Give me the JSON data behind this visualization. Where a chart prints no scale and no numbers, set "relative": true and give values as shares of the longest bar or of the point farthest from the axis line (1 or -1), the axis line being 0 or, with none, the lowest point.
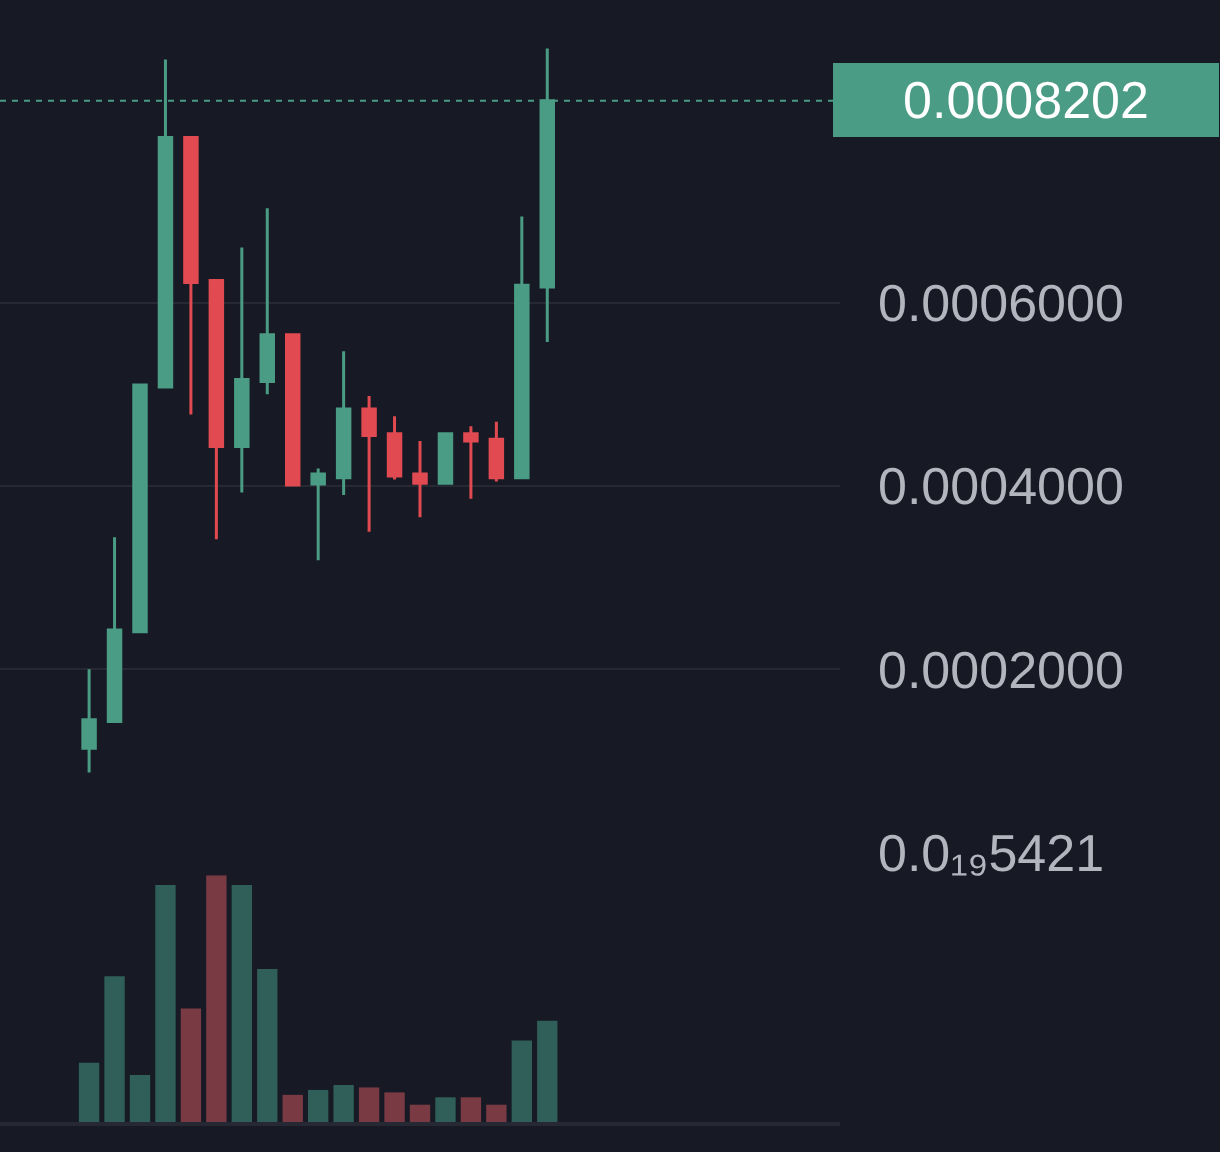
{
  "chart_data": [
    {
      "type": "candlestick",
      "categories": [
        null,
        null,
        null,
        null,
        null,
        null,
        null,
        null,
        null,
        null,
        null,
        null,
        null,
        null,
        null,
        null,
        null,
        null,
        null,
        null,
        null,
        null,
        null,
        null,
        null,
        null,
        null,
        null,
        null,
        null,
        null,
        null,
        null
      ],
      "ohlc": [
        null,
        null,
        null,
        [
          0.000114,
          0.0002,
          8.75e-05,
          0.000145
        ],
        [
          0.000143,
          0.000344,
          0.000143,
          0.000243
        ],
        [
          0.000241,
          0.00051,
          0.000241,
          0.00051
        ],
        [
          0.000508,
          0.000865,
          0.000508,
          0.00078
        ],
        [
          0.00078,
          0.00078,
          0.000478,
          0.000622
        ],
        [
          0.000624,
          0.000624,
          0.000342,
          0.000443
        ],
        [
          0.000443,
          0.00066,
          0.000393,
          0.000516
        ],
        [
          0.000514,
          0.000703,
          0.0005,
          0.000565
        ],
        [
          0.000565,
          0.000565,
          0.000401,
          0.000401
        ],
        [
          0.000402,
          0.000419,
          0.000319,
          0.000413
        ],
        [
          0.000409,
          0.000547,
          0.00039,
          0.000484
        ],
        [
          0.000484,
          0.000498,
          0.00035,
          0.000455
        ],
        [
          0.000457,
          0.000476,
          0.000407,
          0.000411
        ],
        [
          0.000413,
          0.000449,
          0.000366,
          0.000403
        ],
        [
          0.000403,
          0.000457,
          0.000403,
          0.000457
        ],
        [
          0.000457,
          0.000465,
          0.000386,
          0.000449
        ],
        [
          0.000451,
          0.00047,
          0.000405,
          0.000409
        ],
        [
          0.000409,
          0.000694,
          0.000409,
          0.000619
        ],
        [
          0.000617,
          0.000877,
          0.000557,
          0.00082
        ],
        null,
        null,
        null,
        null,
        null,
        null,
        null,
        null,
        null,
        null,
        null
      ],
      "colors": [
        null,
        null,
        null,
        "#4a9c84",
        "#4a9c84",
        "#4a9c84",
        "#4a9c84",
        "#e04a50",
        "#e04a50",
        "#4a9c84",
        "#4a9c84",
        "#e04a50",
        "#4a9c84",
        "#4a9c84",
        "#e04a50",
        "#e04a50",
        "#e04a50",
        "#4a9c84",
        "#e04a50",
        "#e04a50",
        "#4a9c84",
        "#4a9c84",
        null,
        null,
        null,
        null,
        null,
        null,
        null,
        null,
        null,
        null,
        null
      ],
      "ylim": [
        0,
        0.00093
      ],
      "yticks": [
        {
          "value": 0,
          "label": "0.0₁₉5421"
        },
        {
          "value": 0.0002,
          "label": "0.0002000"
        },
        {
          "value": 0.0004,
          "label": "0.0004000"
        },
        {
          "value": 0.0006,
          "label": "0.0006000"
        }
      ],
      "ref_lines": [
        {
          "axis": "y",
          "value": 0.0008202,
          "label": "0.0008202",
          "color": "#4a9c84"
        }
      ],
      "tick_labels": "y",
      "grid": "y"
    },
    {
      "type": "bar",
      "relative": true,
      "categories": [
        null,
        null,
        null,
        null,
        null,
        null,
        null,
        null,
        null,
        null,
        null,
        null,
        null,
        null,
        null,
        null,
        null,
        null,
        null,
        null,
        null,
        null,
        null,
        null,
        null,
        null,
        null,
        null,
        null,
        null,
        null,
        null,
        null
      ],
      "values": [
        null,
        null,
        null,
        0.24,
        0.59,
        0.19,
        0.96,
        0.46,
        1,
        0.96,
        0.62,
        0.11,
        0.13,
        0.15,
        0.14,
        0.12,
        0.07,
        0.1,
        0.1,
        0.07,
        0.33,
        0.41,
        null,
        null,
        null,
        null,
        null,
        null,
        null,
        null,
        null,
        null,
        null
      ],
      "colors": [
        null,
        null,
        null,
        "#2f5f58",
        "#2f5f58",
        "#2f5f58",
        "#2f5f58",
        "#7a3a44",
        "#7a3a44",
        "#2f5f58",
        "#2f5f58",
        "#7a3a44",
        "#2f5f58",
        "#2f5f58",
        "#7a3a44",
        "#7a3a44",
        "#7a3a44",
        "#2f5f58",
        "#7a3a44",
        "#7a3a44",
        "#2f5f58",
        "#2f5f58",
        null,
        null,
        null,
        null,
        null,
        null,
        null,
        null,
        null,
        null,
        null
      ],
      "tick_labels": false
    }
  ]
}
